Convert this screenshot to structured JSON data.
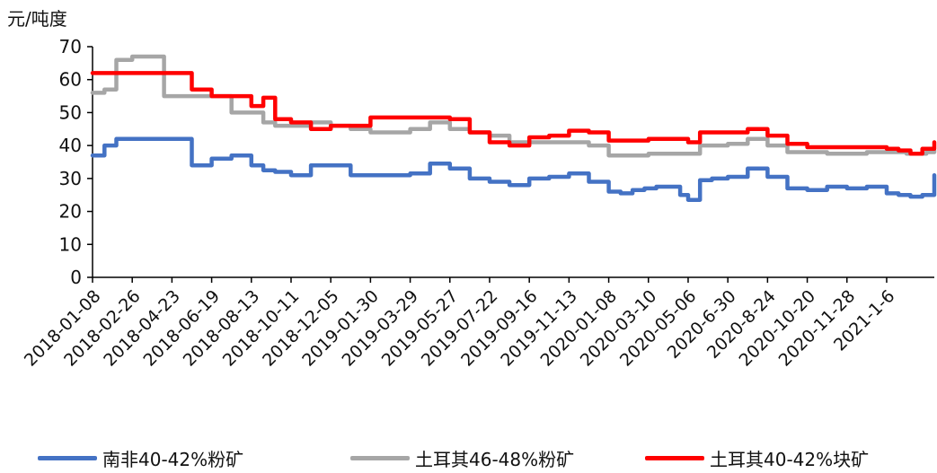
{
  "chart_data": {
    "type": "line",
    "unit_label": "元/吨度",
    "ylim": [
      0,
      70
    ],
    "yticks": [
      0,
      10,
      20,
      30,
      40,
      50,
      60,
      70
    ],
    "x_tick_labels": [
      "2018-01-08",
      "2018-02-26",
      "2018-04-23",
      "2018-06-19",
      "2018-08-13",
      "2018-10-11",
      "2018-12-05",
      "2019-01-30",
      "2019-03-29",
      "2019-05-27",
      "2019-07-22",
      "2019-09-16",
      "2019-11-13",
      "2020-01-08",
      "2020-03-10",
      "2020-05-06",
      "2020-6-30",
      "2020-8-24",
      "2020-10-20",
      "2020-11-28",
      "2021-1-6"
    ],
    "grid": false,
    "legend_position": "bottom",
    "series": [
      {
        "name": "南非40-42%粉矿",
        "color": "#4472c4",
        "x": [
          0,
          0.3,
          0.6,
          1.0,
          1.3,
          1.6,
          2.0,
          2.5,
          3.0,
          3.5,
          4.0,
          4.3,
          4.6,
          5.0,
          5.5,
          6.0,
          6.5,
          7.0,
          7.5,
          8.0,
          8.5,
          9.0,
          9.5,
          10.0,
          10.5,
          11.0,
          11.5,
          12.0,
          12.5,
          13.0,
          13.3,
          13.6,
          13.9,
          14.2,
          14.5,
          14.8,
          15.0,
          15.3,
          15.6,
          16.0,
          16.5,
          17.0,
          17.5,
          18.0,
          18.5,
          19.0,
          19.5,
          20.0,
          20.3,
          20.6,
          20.9,
          21.2
        ],
        "values": [
          37,
          40,
          42,
          42,
          42,
          42,
          42,
          34,
          36,
          37,
          34,
          32.5,
          32,
          31,
          34,
          34,
          31,
          31,
          31,
          31.5,
          34.5,
          33,
          30,
          29,
          28,
          30,
          30.5,
          31.5,
          29,
          26,
          25.5,
          26.5,
          27,
          27.5,
          27.5,
          25,
          23.5,
          29.5,
          30,
          30.5,
          33,
          30.5,
          27,
          26.5,
          27.5,
          27,
          27.5,
          25.5,
          25,
          24.5,
          25,
          31
        ]
      },
      {
        "name": "土耳其46-48%粉矿",
        "color": "#a6a6a6",
        "x": [
          0,
          0.3,
          0.5,
          0.6,
          1.0,
          1.3,
          1.6,
          1.8,
          2.0,
          2.5,
          3.0,
          3.5,
          4.0,
          4.3,
          4.6,
          5.0,
          5.5,
          6.0,
          6.5,
          7.0,
          7.5,
          8.0,
          8.5,
          9.0,
          9.5,
          10.0,
          10.5,
          11.0,
          11.5,
          12.0,
          12.5,
          13.0,
          13.5,
          14.0,
          14.5,
          14.8,
          15.0,
          15.3,
          15.6,
          16.0,
          16.5,
          17.0,
          17.5,
          18.0,
          18.5,
          19.0,
          19.5,
          20.0,
          20.5,
          21.0,
          21.2
        ],
        "values": [
          56,
          57,
          57,
          66,
          67,
          67,
          67,
          55,
          55,
          55,
          55,
          50,
          50,
          47,
          46,
          46,
          47,
          46,
          45,
          44,
          44,
          45,
          47,
          45,
          44,
          43,
          41,
          41,
          41,
          41,
          40,
          37,
          37,
          37.5,
          37.5,
          37.5,
          37.5,
          40,
          40,
          40.5,
          42,
          40,
          38,
          38,
          37.5,
          37.5,
          38,
          38,
          37.5,
          38,
          38.5
        ]
      },
      {
        "name": "土耳其40-42%块矿",
        "color": "#ff0000",
        "x": [
          0,
          0.3,
          0.6,
          1.0,
          1.3,
          1.6,
          2.0,
          2.5,
          3.0,
          3.5,
          4.0,
          4.3,
          4.6,
          5.0,
          5.5,
          6.0,
          6.5,
          7.0,
          7.5,
          8.0,
          8.5,
          9.0,
          9.5,
          10.0,
          10.5,
          11.0,
          11.5,
          12.0,
          12.5,
          13.0,
          13.5,
          14.0,
          14.5,
          14.8,
          15.0,
          15.3,
          15.6,
          16.0,
          16.5,
          17.0,
          17.5,
          18.0,
          18.5,
          19.0,
          19.5,
          20.0,
          20.3,
          20.6,
          20.9,
          21.2
        ],
        "values": [
          62,
          62,
          62,
          62,
          62,
          62,
          62,
          57,
          55,
          55,
          52,
          54.5,
          48,
          47,
          45,
          46,
          46,
          48.5,
          48.5,
          48.5,
          48.5,
          48,
          44,
          41,
          40,
          42.5,
          43,
          44.5,
          44,
          41.5,
          41.5,
          42,
          42,
          42,
          41,
          44,
          44,
          44,
          45,
          43,
          40.5,
          39.5,
          39.5,
          39.5,
          39.5,
          39,
          38.5,
          37.5,
          39,
          41
        ]
      }
    ]
  }
}
